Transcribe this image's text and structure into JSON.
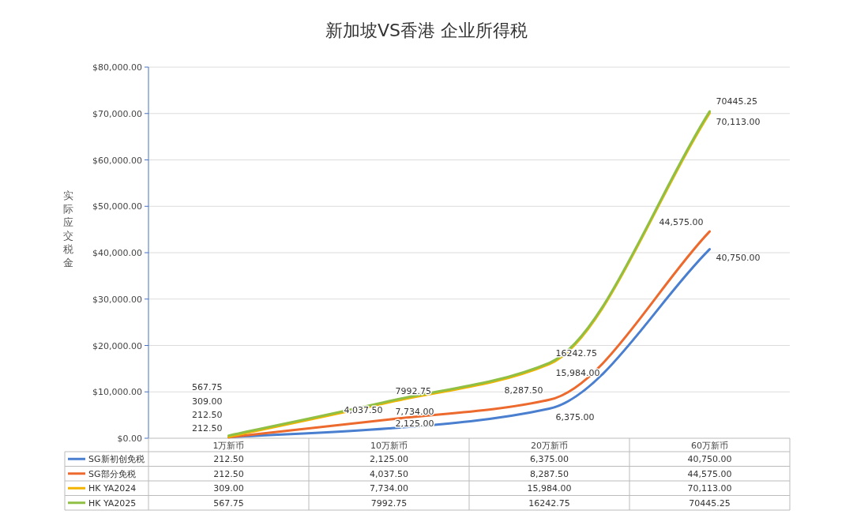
{
  "chart_data": {
    "type": "line",
    "title": "新加坡VS香港 企业所得税",
    "ylabel": "实际应交税金",
    "categories": [
      "1万新币",
      "10万新币",
      "20万新币",
      "60万新币"
    ],
    "series": [
      {
        "name": "SG新初创免税",
        "color": "#4a7fd0",
        "values": [
          212.5,
          2125,
          6375,
          40750
        ],
        "value_labels": [
          "212.50",
          "2,125.00",
          "6,375.00",
          "40,750.00"
        ]
      },
      {
        "name": "SG部分免税",
        "color": "#ed6a2e",
        "values": [
          212.5,
          4037.5,
          8287.5,
          44575
        ],
        "value_labels": [
          "212.50",
          "4,037.50",
          "8,287.50",
          "44,575.00"
        ]
      },
      {
        "name": "HK YA2024",
        "color": "#f2b400",
        "values": [
          309,
          7734,
          15984,
          70113
        ],
        "value_labels": [
          "309.00",
          "7,734.00",
          "15,984.00",
          "70,113.00"
        ]
      },
      {
        "name": "HK YA2025",
        "color": "#8fc045",
        "values": [
          567.75,
          7992.75,
          16242.75,
          70445.25
        ],
        "value_labels": [
          "567.75",
          "7992.75",
          "16242.75",
          "70445.25"
        ]
      }
    ],
    "ylim": [
      0,
      80000
    ],
    "yticks": [
      {
        "value": 0,
        "label": "$0.00"
      },
      {
        "value": 10000,
        "label": "$10,000.00"
      },
      {
        "value": 20000,
        "label": "$20,000.00"
      },
      {
        "value": 30000,
        "label": "$30,000.00"
      },
      {
        "value": 40000,
        "label": "$40,000.00"
      },
      {
        "value": 50000,
        "label": "$50,000.00"
      },
      {
        "value": 60000,
        "label": "$60,000.00"
      },
      {
        "value": 70000,
        "label": "$70,000.00"
      },
      {
        "value": 80000,
        "label": "$80,000.00"
      }
    ],
    "grid": "y",
    "legend": "bottom",
    "data_labels": true,
    "marker": "none",
    "line_style": "solid"
  }
}
